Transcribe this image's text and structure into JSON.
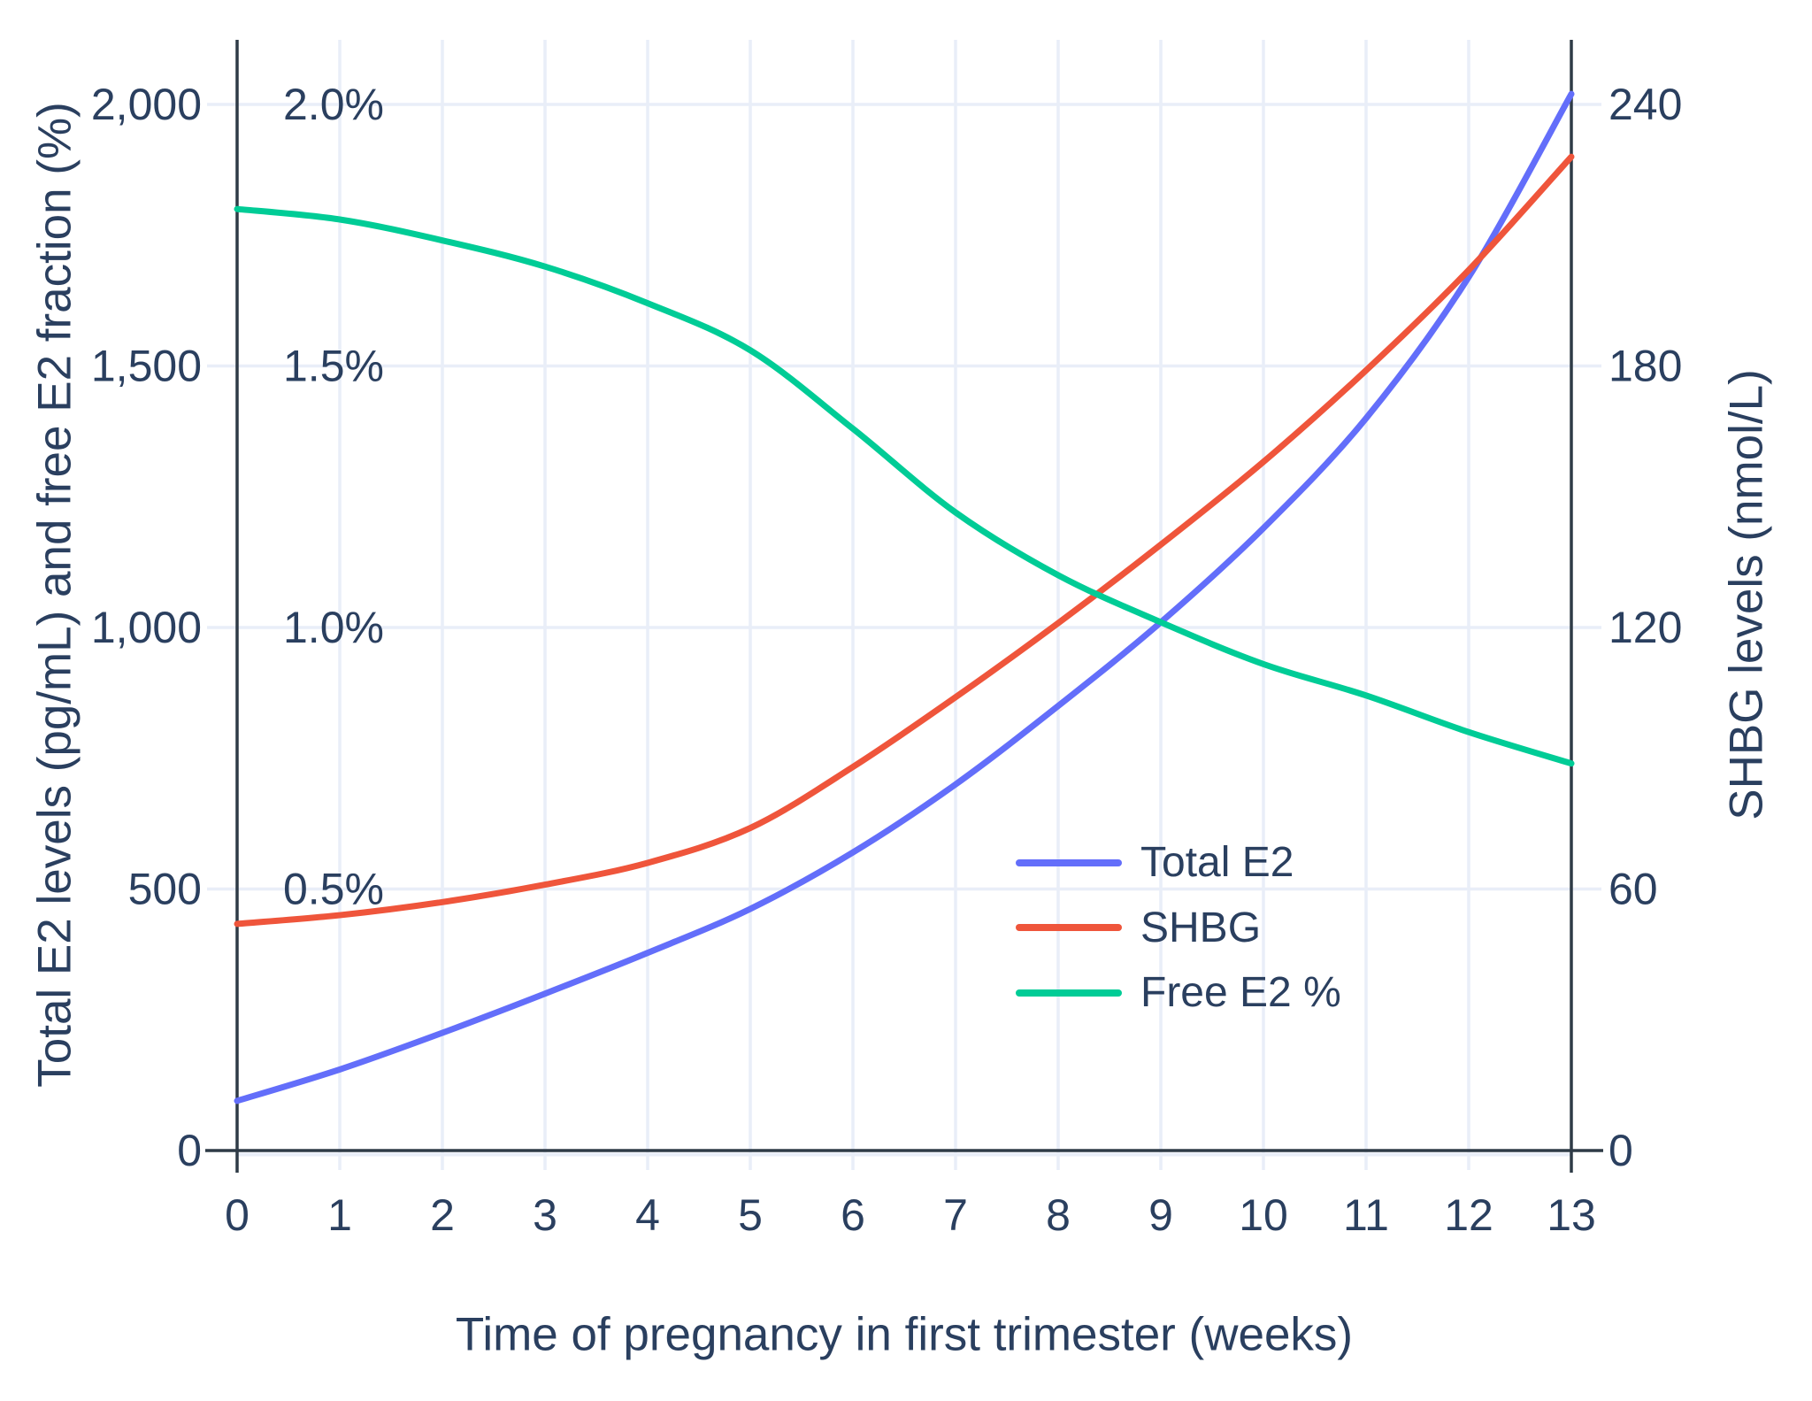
{
  "chart_data": {
    "type": "line",
    "title": "",
    "x_axis": {
      "title": "Time of pregnancy in first trimester (weeks)",
      "tick_labels": [
        "0",
        "1",
        "2",
        "3",
        "4",
        "5",
        "6",
        "7",
        "8",
        "9",
        "10",
        "11",
        "12",
        "13"
      ],
      "tick_values": [
        0,
        1,
        2,
        3,
        4,
        5,
        6,
        7,
        8,
        9,
        10,
        11,
        12,
        13
      ],
      "range": [
        0,
        13
      ]
    },
    "y_left_axis": {
      "title": "Total E2 levels (pg/mL) and free E2 fraction (%)",
      "tick_labels": [
        "0",
        "500",
        "1,000",
        "1,500",
        "2,000"
      ],
      "tick_values": [
        0,
        500,
        1000,
        1500,
        2000
      ],
      "range": [
        0,
        2125
      ]
    },
    "y_left_percent_ticks": {
      "tick_labels": [
        "0.5%",
        "1.0%",
        "1.5%",
        "2.0%"
      ],
      "tick_values": [
        500,
        1000,
        1500,
        2000
      ]
    },
    "y_right_axis": {
      "title": "SHBG levels (nmol/L)",
      "tick_labels": [
        "0",
        "60",
        "120",
        "180",
        "240"
      ],
      "tick_values": [
        0,
        60,
        120,
        180,
        240
      ],
      "range": [
        0,
        255
      ]
    },
    "weeks": [
      0,
      1,
      2,
      3,
      4,
      5,
      6,
      7,
      8,
      9,
      10,
      11,
      12,
      13
    ],
    "series": [
      {
        "name": "Total E2",
        "unit": "pg/mL",
        "axis": "left",
        "color": "#636efa",
        "values": [
          95,
          155,
          225,
          300,
          378,
          462,
          570,
          700,
          850,
          1010,
          1190,
          1400,
          1670,
          2020
        ]
      },
      {
        "name": "SHBG",
        "unit": "nmol/L",
        "axis": "right",
        "color": "#ef553b",
        "values": [
          52,
          54,
          57,
          61,
          66,
          74,
          88,
          104,
          121,
          139,
          158,
          179,
          202,
          228
        ]
      },
      {
        "name": "Free E2 %",
        "unit": "%",
        "axis": "percent",
        "color": "#00cc96",
        "values": [
          1.8,
          1.78,
          1.74,
          1.69,
          1.62,
          1.53,
          1.38,
          1.22,
          1.1,
          1.01,
          0.93,
          0.87,
          0.8,
          0.74
        ]
      }
    ],
    "legend": {
      "position": "inside-right",
      "entries": [
        "Total E2",
        "SHBG",
        "Free E2 %"
      ]
    },
    "grid": true,
    "colors": {
      "background": "#ffffff",
      "text": "#2a3f5f",
      "axis_line": "#2f3b47",
      "gridline": "#e9eef8",
      "zeroline": "#e9eef8"
    }
  }
}
